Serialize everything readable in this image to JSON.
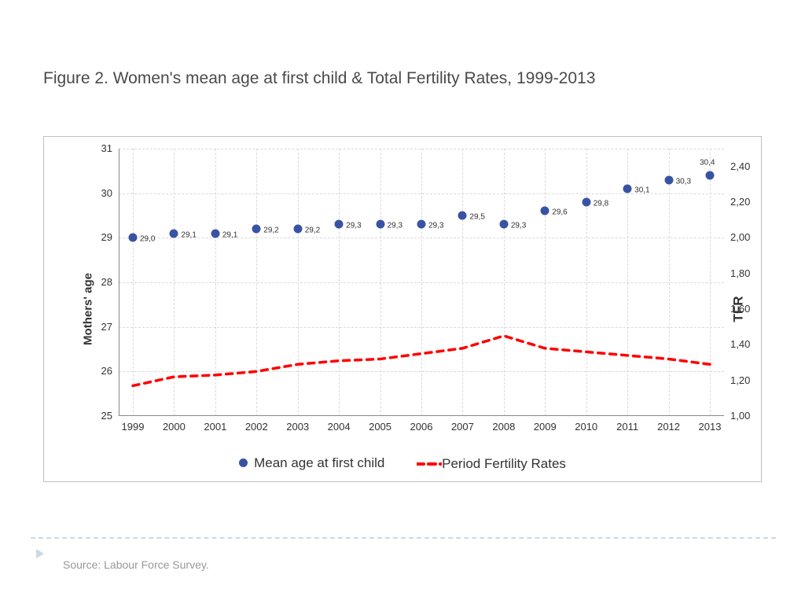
{
  "title": "Figure 2. Women's mean age at first child & Total Fertility Rates, 1999-2013",
  "source": "Source: Labour Force Survey.",
  "chart": {
    "type": "dual-axis-scatter-line",
    "background_color": "#ffffff",
    "border_color": "#bfbfbf",
    "grid_color": "#d9d9d9",
    "grid_dashed": true,
    "y_left": {
      "label": "Mothers' age",
      "min": 25,
      "max": 31,
      "ticks": [
        25,
        26,
        27,
        28,
        29,
        30,
        31
      ],
      "tick_labels": [
        "25",
        "26",
        "27",
        "28",
        "29",
        "30",
        "31"
      ],
      "label_fontsize": 15,
      "label_fontweight": "bold",
      "tick_fontsize": 13
    },
    "y_right": {
      "label": "TFR",
      "min": 1.0,
      "max": 2.5,
      "ticks": [
        1.0,
        1.2,
        1.4,
        1.6,
        1.8,
        2.0,
        2.2,
        2.4
      ],
      "tick_labels": [
        "1,00",
        "1,20",
        "1,40",
        "1,60",
        "1,80",
        "2,00",
        "2,20",
        "2,40"
      ],
      "label_fontsize": 17,
      "label_fontweight": "bold",
      "tick_fontsize": 13
    },
    "x": {
      "categories": [
        "1999",
        "2000",
        "2001",
        "2002",
        "2003",
        "2004",
        "2005",
        "2006",
        "2007",
        "2008",
        "2009",
        "2010",
        "2011",
        "2012",
        "2013"
      ],
      "tick_fontsize": 13
    },
    "series_age": {
      "name": "Mean age at first child",
      "type": "scatter",
      "axis": "left",
      "color": "#3953a4",
      "marker": "circle",
      "marker_size": 11,
      "values": [
        29.0,
        29.1,
        29.1,
        29.2,
        29.2,
        29.3,
        29.3,
        29.3,
        29.5,
        29.3,
        29.6,
        29.8,
        30.1,
        30.3,
        30.4
      ],
      "labels": [
        "29,0",
        "29,1",
        "29,1",
        "29,2",
        "29,2",
        "29,3",
        "29,3",
        "29,3",
        "29,5",
        "29,3",
        "29,6",
        "29,8",
        "30,1",
        "30,3",
        "30,4"
      ],
      "show_labels": true,
      "label_fontsize": 10
    },
    "series_tfr": {
      "name": "Period Fertility Rates",
      "type": "line",
      "axis": "right",
      "color": "#ff0000",
      "line_width": 3.5,
      "dash": "8,7",
      "values": [
        1.17,
        1.22,
        1.23,
        1.25,
        1.29,
        1.31,
        1.32,
        1.35,
        1.38,
        1.45,
        1.38,
        1.36,
        1.34,
        1.32,
        1.29
      ],
      "show_labels": false
    },
    "legend": {
      "position": "bottom",
      "fontsize": 17,
      "items": [
        {
          "label": "Mean age at first child",
          "marker": "circle",
          "color": "#3953a4"
        },
        {
          "label": "Period Fertility Rates",
          "marker": "dash",
          "color": "#ff0000"
        }
      ]
    }
  }
}
